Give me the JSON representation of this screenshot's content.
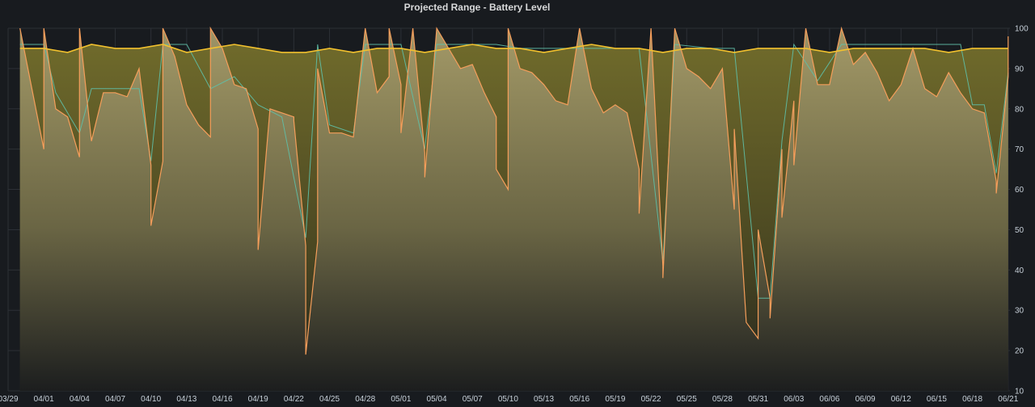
{
  "panel": {
    "title": "Projected Range - Battery Level"
  },
  "colors": {
    "background": "#181b1f",
    "grid": "#2c3036",
    "battery_line": "#f2c12e",
    "range_line": "#f59e5b",
    "secondary_line": "#5fc0a8",
    "range_fill_top": "#a79d6c",
    "battery_fill": "#6f6a2b"
  },
  "chart_data": {
    "type": "area",
    "title": "Projected Range - Battery Level",
    "xlabel": "",
    "ylabel": "",
    "grid": true,
    "legend": "none",
    "x_ticks": [
      "03/29",
      "04/01",
      "04/04",
      "04/07",
      "04/10",
      "04/13",
      "04/16",
      "04/19",
      "04/22",
      "04/25",
      "04/28",
      "05/01",
      "05/04",
      "05/07",
      "05/10",
      "05/13",
      "05/16",
      "05/19",
      "05/22",
      "05/25",
      "05/28",
      "05/31",
      "06/03",
      "06/06",
      "06/09",
      "06/12",
      "06/15",
      "06/18",
      "06/21"
    ],
    "y_ticks": [
      10,
      20,
      30,
      40,
      50,
      60,
      70,
      80,
      90,
      100
    ],
    "ylim": [
      10,
      100
    ],
    "x_start": "03/30",
    "x_end": "06/21",
    "series": [
      {
        "role": "battery_level",
        "color": "#f2c12e",
        "points": [
          [
            "03/30",
            95
          ],
          [
            "04/01",
            95
          ],
          [
            "04/03",
            94
          ],
          [
            "04/05",
            96
          ],
          [
            "04/07",
            95
          ],
          [
            "04/09",
            95
          ],
          [
            "04/11",
            96
          ],
          [
            "04/13",
            94
          ],
          [
            "04/15",
            95
          ],
          [
            "04/17",
            96
          ],
          [
            "04/19",
            95
          ],
          [
            "04/21",
            94
          ],
          [
            "04/23",
            94
          ],
          [
            "04/25",
            95
          ],
          [
            "04/27",
            94
          ],
          [
            "04/29",
            95
          ],
          [
            "05/01",
            95
          ],
          [
            "05/03",
            94
          ],
          [
            "05/05",
            95
          ],
          [
            "05/07",
            96
          ],
          [
            "05/09",
            95
          ],
          [
            "05/11",
            95
          ],
          [
            "05/13",
            94
          ],
          [
            "05/15",
            95
          ],
          [
            "05/17",
            96
          ],
          [
            "05/19",
            95
          ],
          [
            "05/21",
            95
          ],
          [
            "05/23",
            94
          ],
          [
            "05/25",
            95
          ],
          [
            "05/27",
            95
          ],
          [
            "05/29",
            94
          ],
          [
            "05/31",
            95
          ],
          [
            "06/02",
            95
          ],
          [
            "06/04",
            95
          ],
          [
            "06/06",
            94
          ],
          [
            "06/08",
            95
          ],
          [
            "06/10",
            95
          ],
          [
            "06/12",
            95
          ],
          [
            "06/14",
            95
          ],
          [
            "06/16",
            94
          ],
          [
            "06/18",
            95
          ],
          [
            "06/20",
            95
          ],
          [
            "06/21",
            95
          ]
        ]
      },
      {
        "role": "projected_range",
        "color": "#f59e5b",
        "points": [
          [
            "03/30",
            100
          ],
          [
            "03/31",
            85
          ],
          [
            "04/01",
            70
          ],
          [
            "04/01",
            100
          ],
          [
            "04/02",
            80
          ],
          [
            "04/03",
            78
          ],
          [
            "04/04",
            68
          ],
          [
            "04/04",
            100
          ],
          [
            "04/05",
            72
          ],
          [
            "04/06",
            84
          ],
          [
            "04/07",
            84
          ],
          [
            "04/08",
            83
          ],
          [
            "04/09",
            90
          ],
          [
            "04/10",
            66
          ],
          [
            "04/10",
            51
          ],
          [
            "04/11",
            67
          ],
          [
            "04/11",
            100
          ],
          [
            "04/12",
            93
          ],
          [
            "04/13",
            81
          ],
          [
            "04/14",
            76
          ],
          [
            "04/15",
            73
          ],
          [
            "04/15",
            100
          ],
          [
            "04/16",
            95
          ],
          [
            "04/17",
            86
          ],
          [
            "04/18",
            85
          ],
          [
            "04/19",
            75
          ],
          [
            "04/19",
            45
          ],
          [
            "04/20",
            80
          ],
          [
            "04/21",
            79
          ],
          [
            "04/22",
            78
          ],
          [
            "04/22",
            77
          ],
          [
            "04/23",
            46
          ],
          [
            "04/23",
            19
          ],
          [
            "04/24",
            47
          ],
          [
            "04/24",
            90
          ],
          [
            "04/25",
            74
          ],
          [
            "04/26",
            74
          ],
          [
            "04/27",
            73
          ],
          [
            "04/28",
            100
          ],
          [
            "04/29",
            84
          ],
          [
            "04/30",
            88
          ],
          [
            "04/30",
            100
          ],
          [
            "05/01",
            86
          ],
          [
            "05/01",
            74
          ],
          [
            "05/02",
            100
          ],
          [
            "05/03",
            69
          ],
          [
            "05/03",
            63
          ],
          [
            "05/04",
            100
          ],
          [
            "05/05",
            95
          ],
          [
            "05/06",
            90
          ],
          [
            "05/07",
            91
          ],
          [
            "05/08",
            84
          ],
          [
            "05/09",
            78
          ],
          [
            "05/09",
            65
          ],
          [
            "05/10",
            60
          ],
          [
            "05/10",
            100
          ],
          [
            "05/11",
            90
          ],
          [
            "05/12",
            89
          ],
          [
            "05/13",
            86
          ],
          [
            "05/14",
            82
          ],
          [
            "05/15",
            81
          ],
          [
            "05/16",
            100
          ],
          [
            "05/17",
            85
          ],
          [
            "05/18",
            79
          ],
          [
            "05/19",
            81
          ],
          [
            "05/20",
            79
          ],
          [
            "05/21",
            65
          ],
          [
            "05/21",
            54
          ],
          [
            "05/22",
            100
          ],
          [
            "05/23",
            41
          ],
          [
            "05/23",
            38
          ],
          [
            "05/24",
            100
          ],
          [
            "05/25",
            90
          ],
          [
            "05/26",
            88
          ],
          [
            "05/27",
            85
          ],
          [
            "05/28",
            90
          ],
          [
            "05/29",
            55
          ],
          [
            "05/29",
            75
          ],
          [
            "05/30",
            27
          ],
          [
            "05/31",
            23
          ],
          [
            "05/31",
            50
          ],
          [
            "06/01",
            33
          ],
          [
            "06/01",
            28
          ],
          [
            "06/02",
            70
          ],
          [
            "06/02",
            53
          ],
          [
            "06/03",
            82
          ],
          [
            "06/03",
            66
          ],
          [
            "06/04",
            100
          ],
          [
            "06/05",
            86
          ],
          [
            "06/06",
            86
          ],
          [
            "06/07",
            100
          ],
          [
            "06/08",
            91
          ],
          [
            "06/09",
            94
          ],
          [
            "06/10",
            89
          ],
          [
            "06/11",
            82
          ],
          [
            "06/12",
            86
          ],
          [
            "06/13",
            95
          ],
          [
            "06/14",
            85
          ],
          [
            "06/15",
            83
          ],
          [
            "06/16",
            89
          ],
          [
            "06/17",
            84
          ],
          [
            "06/18",
            80
          ],
          [
            "06/19",
            79
          ],
          [
            "06/20",
            62
          ],
          [
            "06/20",
            59
          ],
          [
            "06/21",
            88
          ],
          [
            "06/21",
            98
          ]
        ]
      },
      {
        "role": "secondary_range",
        "color": "#5fc0a8",
        "points": [
          [
            "03/30",
            96
          ],
          [
            "04/01",
            96
          ],
          [
            "04/02",
            84
          ],
          [
            "04/04",
            74
          ],
          [
            "04/05",
            85
          ],
          [
            "04/07",
            85
          ],
          [
            "04/09",
            85
          ],
          [
            "04/10",
            67
          ],
          [
            "04/11",
            96
          ],
          [
            "04/13",
            96
          ],
          [
            "04/15",
            85
          ],
          [
            "04/17",
            88
          ],
          [
            "04/19",
            81
          ],
          [
            "04/21",
            78
          ],
          [
            "04/23",
            48
          ],
          [
            "04/24",
            96
          ],
          [
            "04/25",
            76
          ],
          [
            "04/27",
            74
          ],
          [
            "04/28",
            96
          ],
          [
            "05/01",
            96
          ],
          [
            "05/03",
            70
          ],
          [
            "05/04",
            96
          ],
          [
            "05/07",
            96
          ],
          [
            "05/09",
            96
          ],
          [
            "05/11",
            95
          ],
          [
            "05/13",
            95
          ],
          [
            "05/15",
            95
          ],
          [
            "05/17",
            95
          ],
          [
            "05/19",
            95
          ],
          [
            "05/21",
            95
          ],
          [
            "05/23",
            42
          ],
          [
            "05/24",
            96
          ],
          [
            "05/27",
            95
          ],
          [
            "05/29",
            95
          ],
          [
            "05/31",
            33
          ],
          [
            "06/01",
            33
          ],
          [
            "06/02",
            72
          ],
          [
            "06/03",
            96
          ],
          [
            "06/05",
            87
          ],
          [
            "06/07",
            96
          ],
          [
            "06/09",
            96
          ],
          [
            "06/11",
            96
          ],
          [
            "06/13",
            96
          ],
          [
            "06/15",
            96
          ],
          [
            "06/17",
            96
          ],
          [
            "06/18",
            81
          ],
          [
            "06/19",
            81
          ],
          [
            "06/20",
            64
          ],
          [
            "06/21",
            89
          ]
        ]
      }
    ]
  }
}
